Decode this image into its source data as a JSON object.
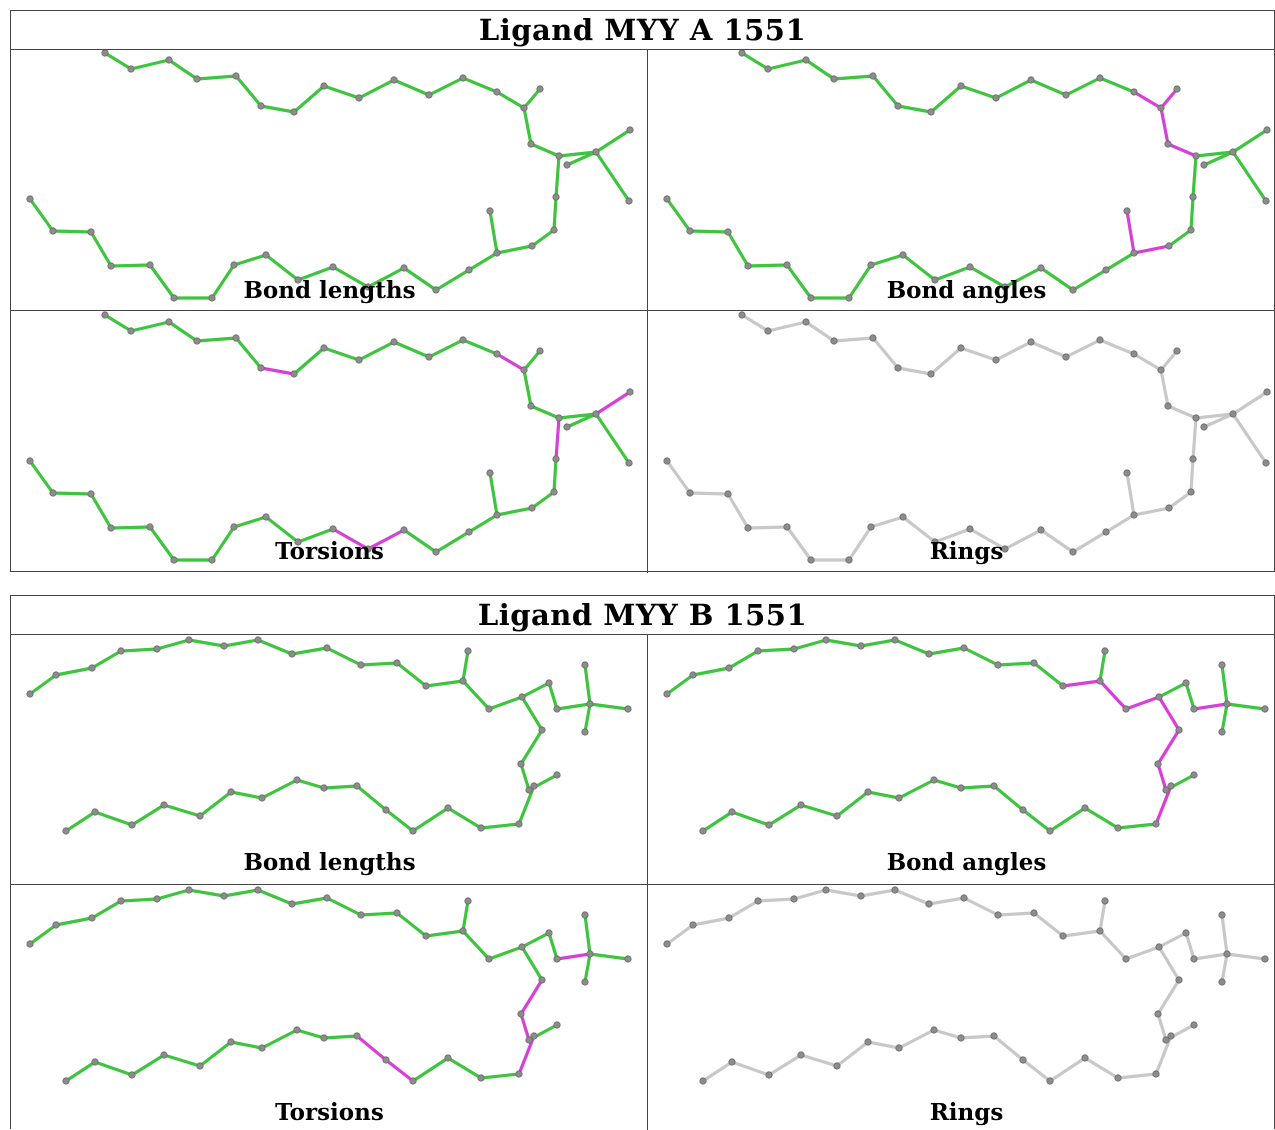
{
  "colors": {
    "good_bond": "#3ec43e",
    "bad_bond": "#d83fd8",
    "bad_bond_dark": "#a41fa4",
    "unchecked_bond": "#c8c8c8",
    "atom": "#8c8c8c"
  },
  "blocks": [
    {
      "title": "Ligand MYY A 1551",
      "panels": [
        {
          "label": "Bond lengths",
          "bad_bonds": []
        },
        {
          "label": "Bond angles",
          "bad_bonds": [
            "n13-n14",
            "n14-n15",
            "n15-n16",
            "n16-sideR",
            "n22-n23",
            "n23-n24"
          ]
        },
        {
          "label": "Torsions",
          "bad_bonds": [
            "a7-a8",
            "a13-a14",
            "n16-n17",
            "n17-sideR",
            "n27-n28",
            "n28-n29"
          ]
        },
        {
          "label": "Rings",
          "bad_bonds": []
        }
      ]
    },
    {
      "title": "Ligand MYY B 1551",
      "panels": [
        {
          "label": "Bond lengths",
          "bad_bonds": []
        },
        {
          "label": "Bond angles",
          "bad_bonds": [
            "b14-b15",
            "b15-b16",
            "b16-b17",
            "b17-b18",
            "b18-b19",
            "b19-b20",
            "b20-b21",
            "b21-b22",
            "b22-b23",
            "bT-bX"
          ]
        },
        {
          "label": "Torsions",
          "bad_bonds": [
            "b18-b19",
            "b19-b20",
            "b22-b23",
            "b23-b24",
            "b31-b32",
            "b32-b33",
            "bT-bX"
          ]
        },
        {
          "label": "Rings",
          "bad_bonds": []
        }
      ]
    }
  ]
}
